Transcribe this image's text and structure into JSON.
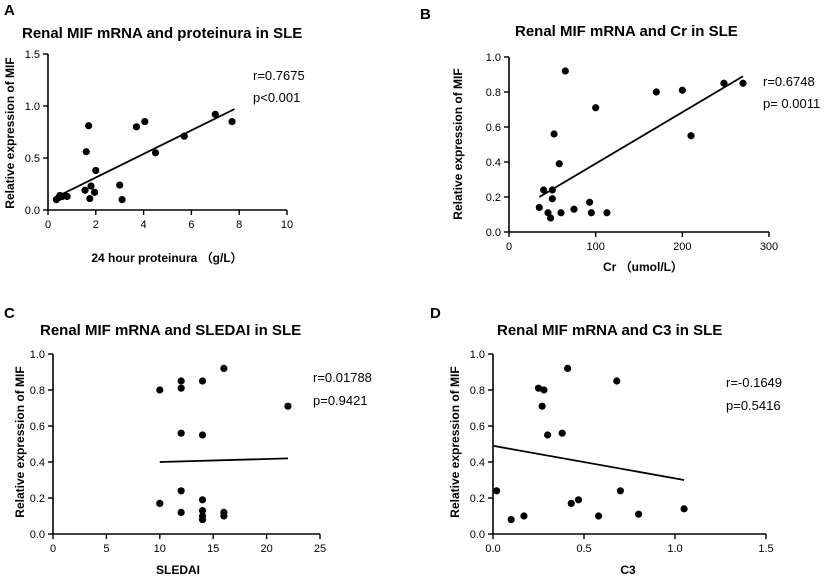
{
  "chart_data": [
    {
      "type": "scatter",
      "panel": "A",
      "title": "Renal MIF mRNA  and  proteinura in SLE",
      "xlabel": "24 hour proteinura  （g/L）",
      "ylabel": "Relative expression of MIF",
      "xlim": [
        0,
        10
      ],
      "ylim": [
        0,
        1.5
      ],
      "xticks": [
        0,
        2,
        4,
        6,
        8,
        10
      ],
      "yticks": [
        0,
        0.5,
        1.0,
        1.5
      ],
      "ytick_labels": [
        "0.0",
        "0.5",
        "1.0",
        "1.5"
      ],
      "points": [
        [
          0.35,
          0.1
        ],
        [
          0.45,
          0.12
        ],
        [
          0.5,
          0.14
        ],
        [
          0.6,
          0.13
        ],
        [
          0.8,
          0.13
        ],
        [
          1.55,
          0.19
        ],
        [
          1.6,
          0.56
        ],
        [
          1.7,
          0.81
        ],
        [
          1.75,
          0.11
        ],
        [
          1.8,
          0.23
        ],
        [
          1.95,
          0.17
        ],
        [
          2.0,
          0.38
        ],
        [
          3.0,
          0.24
        ],
        [
          3.1,
          0.1
        ],
        [
          3.7,
          0.8
        ],
        [
          4.05,
          0.85
        ],
        [
          4.5,
          0.55
        ],
        [
          5.7,
          0.71
        ],
        [
          7.0,
          0.92
        ],
        [
          7.7,
          0.85
        ]
      ],
      "fit_line": [
        [
          0.3,
          0.12
        ],
        [
          7.8,
          0.97
        ]
      ],
      "stats": [
        "r=0.7675",
        "p<0.001"
      ]
    },
    {
      "type": "scatter",
      "panel": "B",
      "title": "Renal MIF mRNA  and Cr in SLE",
      "xlabel": "Cr  （umol/L）",
      "ylabel": "Relative expression of MIF",
      "xlim": [
        0,
        300
      ],
      "ylim": [
        0,
        1.0
      ],
      "xticks": [
        0,
        100,
        200,
        300
      ],
      "yticks": [
        0,
        0.2,
        0.4,
        0.6,
        0.8,
        1.0
      ],
      "ytick_labels": [
        "0.0",
        "0.2",
        "0.4",
        "0.6",
        "0.8",
        "1.0"
      ],
      "points": [
        [
          35,
          0.14
        ],
        [
          40,
          0.24
        ],
        [
          45,
          0.11
        ],
        [
          48,
          0.08
        ],
        [
          50,
          0.19
        ],
        [
          50,
          0.24
        ],
        [
          52,
          0.56
        ],
        [
          58,
          0.39
        ],
        [
          60,
          0.11
        ],
        [
          65,
          0.92
        ],
        [
          75,
          0.13
        ],
        [
          93,
          0.17
        ],
        [
          95,
          0.11
        ],
        [
          100,
          0.71
        ],
        [
          113,
          0.11
        ],
        [
          170,
          0.8
        ],
        [
          200,
          0.81
        ],
        [
          210,
          0.55
        ],
        [
          248,
          0.85
        ],
        [
          270,
          0.85
        ]
      ],
      "fit_line": [
        [
          35,
          0.2
        ],
        [
          270,
          0.89
        ]
      ],
      "stats": [
        "r=0.6748",
        "p= 0.0011"
      ]
    },
    {
      "type": "scatter",
      "panel": "C",
      "title": "Renal MIF mRNA  and SLEDAI in SLE",
      "xlabel": "SLEDAI",
      "ylabel": "Relative expression of MIF",
      "xlim": [
        0,
        25
      ],
      "ylim": [
        0,
        1.0
      ],
      "xticks": [
        0,
        5,
        10,
        15,
        20,
        25
      ],
      "yticks": [
        0,
        0.2,
        0.4,
        0.6,
        0.8,
        1.0
      ],
      "ytick_labels": [
        "0.0",
        "0.2",
        "0.4",
        "0.6",
        "0.8",
        "1.0"
      ],
      "points": [
        [
          10,
          0.8
        ],
        [
          10,
          0.17
        ],
        [
          12,
          0.85
        ],
        [
          12,
          0.81
        ],
        [
          12,
          0.56
        ],
        [
          12,
          0.24
        ],
        [
          12,
          0.12
        ],
        [
          14,
          0.85
        ],
        [
          14,
          0.55
        ],
        [
          14,
          0.19
        ],
        [
          14,
          0.13
        ],
        [
          14,
          0.1
        ],
        [
          14,
          0.08
        ],
        [
          16,
          0.92
        ],
        [
          16,
          0.12
        ],
        [
          16,
          0.1
        ],
        [
          22,
          0.71
        ]
      ],
      "fit_line": [
        [
          10,
          0.4
        ],
        [
          22,
          0.42
        ]
      ],
      "stats": [
        "r=0.01788",
        "p=0.9421"
      ]
    },
    {
      "type": "scatter",
      "panel": "D",
      "title": "Renal MIF mRNA  and C3 in SLE",
      "xlabel": "C3",
      "ylabel": "Relative expression of MIF",
      "xlim": [
        0,
        1.5
      ],
      "ylim": [
        0,
        1.0
      ],
      "xticks": [
        0,
        0.5,
        1.0,
        1.5
      ],
      "xtick_labels": [
        "0.0",
        "0.5",
        "1.0",
        "1.5"
      ],
      "yticks": [
        0,
        0.2,
        0.4,
        0.6,
        0.8,
        1.0
      ],
      "ytick_labels": [
        "0.0",
        "0.2",
        "0.4",
        "0.6",
        "0.8",
        "1.0"
      ],
      "points": [
        [
          0.02,
          0.24
        ],
        [
          0.1,
          0.08
        ],
        [
          0.17,
          0.1
        ],
        [
          0.25,
          0.81
        ],
        [
          0.27,
          0.71
        ],
        [
          0.28,
          0.8
        ],
        [
          0.3,
          0.55
        ],
        [
          0.38,
          0.56
        ],
        [
          0.41,
          0.92
        ],
        [
          0.43,
          0.17
        ],
        [
          0.47,
          0.19
        ],
        [
          0.58,
          0.1
        ],
        [
          0.68,
          0.85
        ],
        [
          0.7,
          0.24
        ],
        [
          0.8,
          0.11
        ],
        [
          1.05,
          0.14
        ]
      ],
      "fit_line": [
        [
          0.0,
          0.49
        ],
        [
          1.05,
          0.3
        ]
      ],
      "stats": [
        "r=-0.1649",
        "p=0.5416"
      ]
    }
  ]
}
